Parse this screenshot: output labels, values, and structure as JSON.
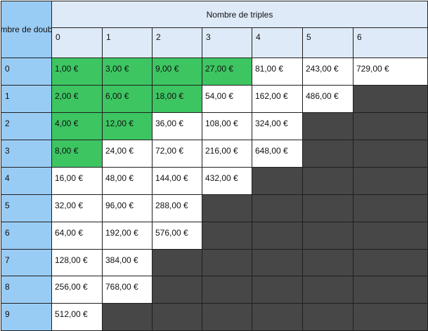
{
  "table": {
    "corner_label": "Nombre de doubles",
    "top_header": "Nombre de triples",
    "col_headers": [
      "0",
      "1",
      "2",
      "3",
      "4",
      "5",
      "6"
    ],
    "row_headers": [
      "0",
      "1",
      "2",
      "3",
      "4",
      "5",
      "6",
      "7",
      "8",
      "9"
    ],
    "rows": [
      [
        "1,00 €",
        "3,00 €",
        "9,00 €",
        "27,00 €",
        "81,00 €",
        "243,00 €",
        "729,00 €"
      ],
      [
        "2,00 €",
        "6,00 €",
        "18,00 €",
        "54,00 €",
        "162,00 €",
        "486,00 €",
        ""
      ],
      [
        "4,00 €",
        "12,00 €",
        "36,00 €",
        "108,00 €",
        "324,00 €",
        "",
        ""
      ],
      [
        "8,00 €",
        "24,00 €",
        "72,00 €",
        "216,00 €",
        "648,00 €",
        "",
        ""
      ],
      [
        "16,00 €",
        "48,00 €",
        "144,00 €",
        "432,00 €",
        "",
        "",
        ""
      ],
      [
        "32,00 €",
        "96,00 €",
        "288,00 €",
        "",
        "",
        "",
        ""
      ],
      [
        "64,00 €",
        "192,00 €",
        "576,00 €",
        "",
        "",
        "",
        ""
      ],
      [
        "128,00 €",
        "384,00 €",
        "",
        "",
        "",
        "",
        ""
      ],
      [
        "256,00 €",
        "768,00 €",
        "",
        "",
        "",
        "",
        ""
      ],
      [
        "512,00 €",
        "",
        "",
        "",
        "",
        "",
        ""
      ]
    ],
    "green_cells": [
      [
        0,
        0
      ],
      [
        0,
        1
      ],
      [
        0,
        2
      ],
      [
        0,
        3
      ],
      [
        1,
        0
      ],
      [
        1,
        1
      ],
      [
        1,
        2
      ],
      [
        2,
        0
      ],
      [
        2,
        1
      ],
      [
        3,
        0
      ]
    ],
    "colors": {
      "top_header_bg": "#deeaf7",
      "row_header_bg": "#99ccf5",
      "highlight_green": "#3dc562",
      "unavailable_dark": "#474747",
      "value_bg": "#ffffff"
    }
  }
}
